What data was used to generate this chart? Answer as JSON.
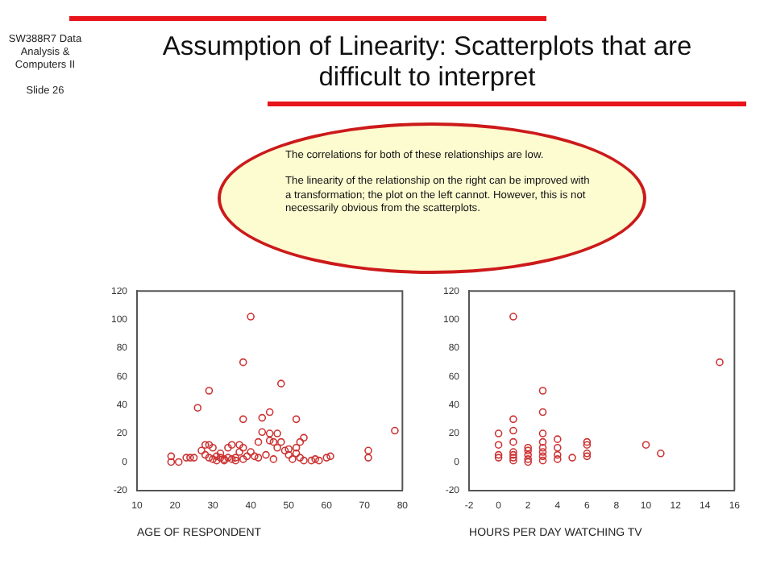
{
  "chart_data": [
    {
      "type": "scatter",
      "title": "Assumption of Linearity: Scatterplots that are difficult to interpret",
      "xlabel": "AGE OF RESPONDENT",
      "annotations": [
        "SW388R7 Data Analysis & Computers II",
        "Slide 26",
        "The correlations for both of these relationships are low.",
        "The linearity of the relationship on the right can be improved with a transformation; the plot on the left cannot. However, this is not necessarily obvious from the scatterplots."
      ],
      "x": [
        19,
        19,
        21,
        23,
        24,
        25,
        26,
        27,
        28,
        28,
        29,
        29,
        29,
        30,
        30,
        31,
        31,
        32,
        32,
        33,
        33,
        34,
        34,
        35,
        35,
        36,
        36,
        37,
        37,
        38,
        38,
        38,
        38,
        39,
        40,
        40,
        41,
        42,
        42,
        43,
        43,
        44,
        45,
        45,
        45,
        46,
        46,
        47,
        47,
        48,
        48,
        49,
        50,
        50,
        51,
        52,
        52,
        52,
        53,
        53,
        54,
        54,
        56,
        57,
        58,
        60,
        61,
        71,
        71,
        78
      ],
      "series": [
        {
          "color": "#cc3333",
          "values": [
            4,
            0,
            0,
            3,
            3,
            3,
            38,
            8,
            5,
            12,
            12,
            50,
            3,
            10,
            2,
            1,
            4,
            6,
            3,
            1,
            2,
            10,
            3,
            12,
            2,
            1,
            3,
            7,
            12,
            70,
            30,
            10,
            2,
            4,
            102,
            7,
            4,
            3,
            14,
            21,
            31,
            5,
            35,
            15,
            20,
            14,
            2,
            20,
            10,
            55,
            14,
            8,
            5,
            9,
            2,
            30,
            10,
            6,
            3,
            14,
            17,
            1,
            1,
            2,
            1,
            3,
            4,
            8,
            3,
            22
          ]
        }
      ],
      "marker": "circle",
      "xlim": [
        10,
        80
      ],
      "xticks": [
        10,
        20,
        30,
        40,
        50,
        60,
        70,
        80
      ],
      "ylim": [
        -20,
        120
      ],
      "yticks": [
        -20,
        0,
        20,
        40,
        60,
        80,
        100,
        120
      ],
      "grid": false,
      "legend": false
    },
    {
      "type": "scatter",
      "xlabel": "HOURS PER DAY WATCHING TV",
      "x": [
        0,
        0,
        0,
        0,
        1,
        1,
        1,
        1,
        1,
        1,
        1,
        1,
        2,
        2,
        2,
        2,
        2,
        3,
        3,
        3,
        3,
        3,
        3,
        3,
        3,
        4,
        4,
        4,
        4,
        5,
        6,
        6,
        6,
        6,
        10,
        11,
        15
      ],
      "series": [
        {
          "color": "#cc3333",
          "values": [
            20,
            12,
            5,
            3,
            102,
            30,
            22,
            14,
            7,
            5,
            3,
            1,
            10,
            8,
            5,
            2,
            0,
            50,
            35,
            20,
            14,
            10,
            7,
            4,
            1,
            16,
            10,
            5,
            2,
            3,
            14,
            12,
            6,
            4,
            12,
            6,
            70
          ]
        }
      ],
      "marker": "circle",
      "xlim": [
        -2,
        16
      ],
      "xticks": [
        -2,
        0,
        2,
        4,
        6,
        8,
        10,
        12,
        14,
        16
      ],
      "ylim": [
        -20,
        120
      ],
      "yticks": [
        -20,
        0,
        20,
        40,
        60,
        80,
        100,
        120
      ],
      "grid": false,
      "legend": false
    }
  ]
}
